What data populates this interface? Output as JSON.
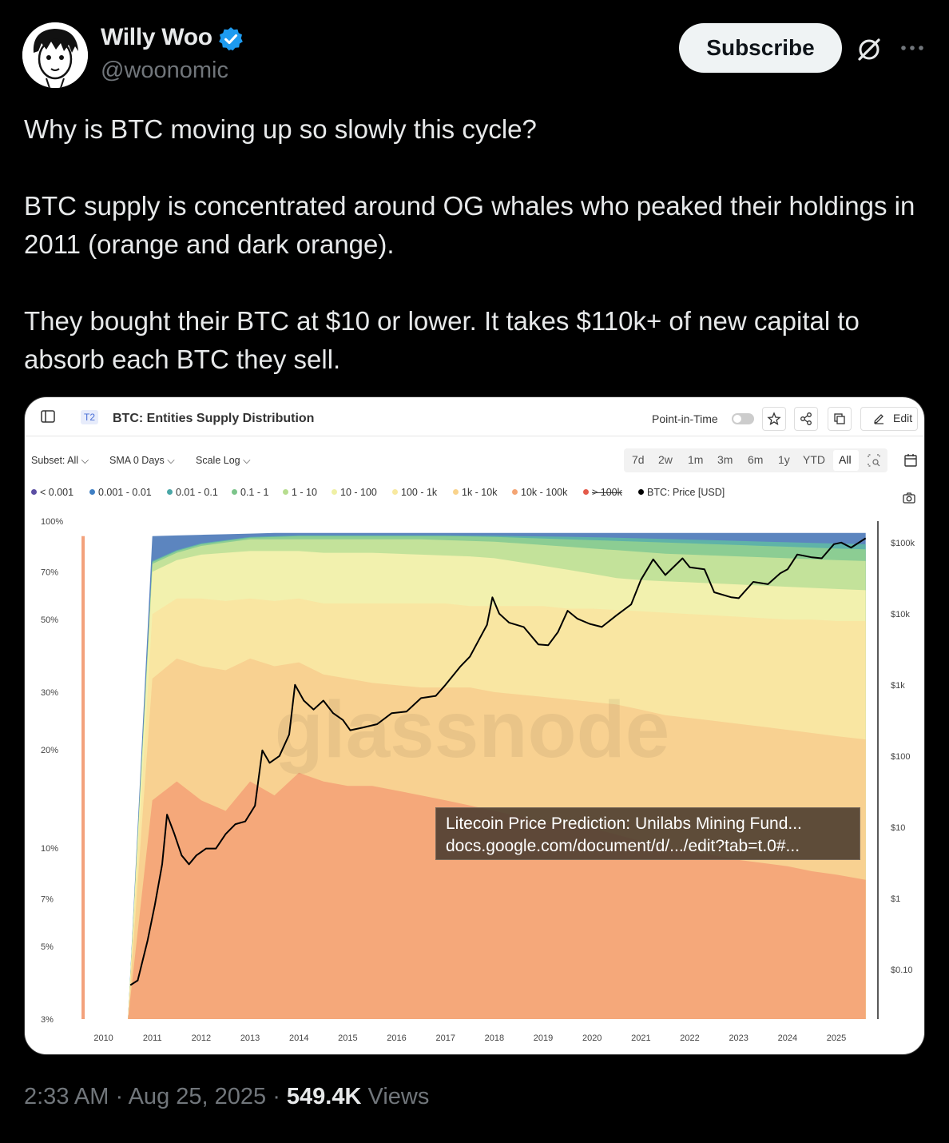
{
  "author": {
    "name": "Willy Woo",
    "handle": "@woonomic"
  },
  "actions": {
    "subscribe_label": "Subscribe"
  },
  "tweet": {
    "paragraphs": [
      "Why is BTC moving up so slowly this cycle?",
      "BTC supply is concentrated around OG whales who peaked their holdings in 2011 (orange and dark orange).",
      "They bought their BTC at $10 or lower. It takes $110k+ of new capital to absorb each BTC they sell."
    ]
  },
  "chart_header": {
    "tier_badge": "T2",
    "title": "BTC: Entities Supply Distribution",
    "point_in_time_label": "Point-in-Time",
    "edit_label": "Edit",
    "subset_label": "Subset: All",
    "sma_label": "SMA 0 Days",
    "scale_label": "Scale Log",
    "ranges": [
      "7d",
      "2w",
      "1m",
      "3m",
      "6m",
      "1y",
      "YTD",
      "All"
    ],
    "active_range": "All"
  },
  "tooltip": {
    "line1": "Litecoin Price Prediction: Unilabs Mining Fund...",
    "line2": "docs.google.com/document/d/.../edit?tab=t.0#..."
  },
  "watermark": "glassnode",
  "footer": {
    "time": "2:33 AM",
    "date": "Aug 25, 2025",
    "views_count": "549.4K",
    "views_label": "Views"
  },
  "chart_data": {
    "type": "area",
    "title": "BTC: Entities Supply Distribution",
    "scale": "log",
    "legend_placement": "top",
    "grid": false,
    "x": [
      2009.5,
      2010,
      2010.5,
      2011,
      2011.5,
      2012,
      2012.5,
      2013,
      2013.5,
      2014,
      2014.5,
      2015,
      2015.5,
      2016,
      2016.5,
      2017,
      2017.5,
      2018,
      2018.5,
      2019,
      2019.5,
      2020,
      2020.5,
      2021,
      2021.5,
      2022,
      2022.5,
      2023,
      2023.5,
      2024,
      2024.5,
      2025,
      2025.6
    ],
    "x_ticks": [
      "2010",
      "2011",
      "2012",
      "2013",
      "2014",
      "2015",
      "2016",
      "2017",
      "2018",
      "2019",
      "2020",
      "2021",
      "2022",
      "2023",
      "2024",
      "2025"
    ],
    "y_left_ticks": [
      "100%",
      "70%",
      "50%",
      "30%",
      "20%",
      "10%",
      "7%",
      "5%",
      "3%"
    ],
    "y_left_range": [
      3,
      100
    ],
    "y_right_ticks": [
      "$100k",
      "$10k",
      "$1k",
      "$100",
      "$10",
      "$1",
      "$0.10"
    ],
    "y_right_range": [
      0.02,
      200000
    ],
    "bands": [
      {
        "name": "< 0.001",
        "color": "#5b4ea3"
      },
      {
        "name": "0.001 - 0.01",
        "color": "#3f7fc4"
      },
      {
        "name": "0.01 - 0.1",
        "color": "#4aa7a7"
      },
      {
        "name": "0.1 - 1",
        "color": "#7cc48a"
      },
      {
        "name": "1 - 10",
        "color": "#b7dd8f"
      },
      {
        "name": "10 - 100",
        "color": "#eff0a5"
      },
      {
        "name": "100 - 1k",
        "color": "#f8e9a0"
      },
      {
        "name": "1k - 10k",
        "color": "#f9d38c"
      },
      {
        "name": "10k - 100k",
        "color": "#f4a574"
      },
      {
        "name": "> 100k",
        "color": "#e45a4a",
        "struck": true
      }
    ],
    "cumulative_boundaries": [
      {
        "below": "10k - 100k",
        "values": [
          3,
          3,
          3,
          14,
          16,
          14,
          13,
          16,
          14.5,
          17,
          16,
          15.5,
          15.5,
          15,
          14.5,
          14,
          13.5,
          13,
          12.5,
          12,
          11.8,
          11.5,
          11,
          10.5,
          10,
          9.8,
          9.5,
          9.2,
          9,
          8.8,
          8.5,
          8.3,
          8
        ]
      },
      {
        "below": "1k - 10k",
        "values": [
          3,
          3,
          3,
          33,
          38,
          36,
          35,
          38,
          36,
          37,
          34,
          33,
          32,
          31.5,
          31,
          31,
          31,
          30,
          29.5,
          29,
          28.5,
          28,
          27.5,
          26.5,
          25.5,
          25,
          24.5,
          24,
          23.5,
          23,
          22.5,
          22,
          21.5
        ]
      },
      {
        "below": "100 - 1k",
        "values": [
          3,
          3,
          3,
          52,
          58,
          58,
          57,
          58,
          57,
          58,
          56,
          56,
          56,
          56,
          56,
          56,
          55,
          55,
          55,
          55,
          54,
          54,
          53.5,
          53,
          52.5,
          52,
          51.5,
          51,
          50.5,
          50,
          50,
          49.5,
          49.5
        ]
      },
      {
        "below": "10 - 100",
        "values": [
          3,
          3,
          3,
          70,
          76,
          79,
          80,
          81,
          81,
          81,
          80,
          80,
          80,
          79.5,
          79,
          78.5,
          78,
          77,
          75,
          73,
          71,
          69,
          67,
          66,
          65.5,
          65,
          64.5,
          64,
          63.5,
          63,
          62.5,
          62,
          61.5
        ]
      },
      {
        "below": "1 - 10",
        "values": [
          3,
          3,
          3,
          74,
          80,
          84,
          86,
          88,
          88,
          88,
          88,
          88,
          88,
          88,
          88,
          87.5,
          87,
          86.5,
          85.5,
          84.5,
          83.5,
          82.5,
          81.5,
          80.5,
          79.5,
          79,
          78.5,
          78,
          77.5,
          77,
          76.5,
          76,
          75.5
        ]
      },
      {
        "below": "0.1 - 1",
        "values": [
          3,
          3,
          3,
          75,
          81,
          85,
          87,
          89,
          89.5,
          90,
          90,
          90,
          90,
          90,
          90,
          90,
          89.8,
          89.5,
          89,
          88.5,
          88,
          87.5,
          87,
          86.5,
          86,
          85.5,
          85,
          84.5,
          84,
          83.5,
          83,
          82.5,
          82
        ]
      },
      {
        "below": "0.01 - 0.1",
        "values": [
          3,
          3,
          3,
          75.5,
          81.5,
          85.5,
          87.5,
          89.5,
          90,
          90.5,
          90.5,
          90.5,
          90.5,
          90.5,
          90.5,
          90.5,
          90.3,
          90.2,
          90,
          89.8,
          89.6,
          89.3,
          89,
          88.6,
          88.2,
          87.8,
          87.4,
          87,
          86.6,
          86.2,
          85.8,
          85.4,
          85
        ]
      }
    ],
    "series": [
      {
        "name": "BTC: Price [USD]",
        "color": "#000000",
        "x": [
          2010.55,
          2010.7,
          2010.9,
          2011.05,
          2011.2,
          2011.3,
          2011.45,
          2011.6,
          2011.75,
          2011.9,
          2012.1,
          2012.3,
          2012.5,
          2012.7,
          2012.9,
          2013.1,
          2013.25,
          2013.4,
          2013.6,
          2013.8,
          2013.92,
          2014.1,
          2014.3,
          2014.5,
          2014.7,
          2014.9,
          2015.05,
          2015.3,
          2015.6,
          2015.9,
          2016.2,
          2016.5,
          2016.8,
          2017.0,
          2017.3,
          2017.5,
          2017.7,
          2017.85,
          2017.96,
          2018.1,
          2018.3,
          2018.6,
          2018.9,
          2019.1,
          2019.3,
          2019.5,
          2019.7,
          2019.95,
          2020.2,
          2020.5,
          2020.8,
          2021.0,
          2021.25,
          2021.5,
          2021.85,
          2022.0,
          2022.3,
          2022.5,
          2022.85,
          2023.0,
          2023.3,
          2023.6,
          2023.85,
          2024.0,
          2024.2,
          2024.5,
          2024.7,
          2024.95,
          2025.1,
          2025.3,
          2025.6
        ],
        "y": [
          0.06,
          0.07,
          0.25,
          0.8,
          3,
          15,
          8,
          4,
          3,
          4,
          5,
          5,
          8,
          11,
          12,
          20,
          120,
          80,
          100,
          200,
          1000,
          600,
          450,
          600,
          400,
          320,
          230,
          250,
          280,
          400,
          420,
          650,
          700,
          1000,
          1800,
          2500,
          4500,
          7000,
          17000,
          10000,
          7500,
          6500,
          3700,
          3600,
          5500,
          11000,
          8500,
          7200,
          6500,
          9500,
          13500,
          30000,
          58000,
          35000,
          60000,
          45000,
          42000,
          20000,
          17000,
          16500,
          28000,
          26000,
          37000,
          42000,
          68000,
          62000,
          60000,
          95000,
          100000,
          85000,
          115000
        ]
      }
    ]
  }
}
